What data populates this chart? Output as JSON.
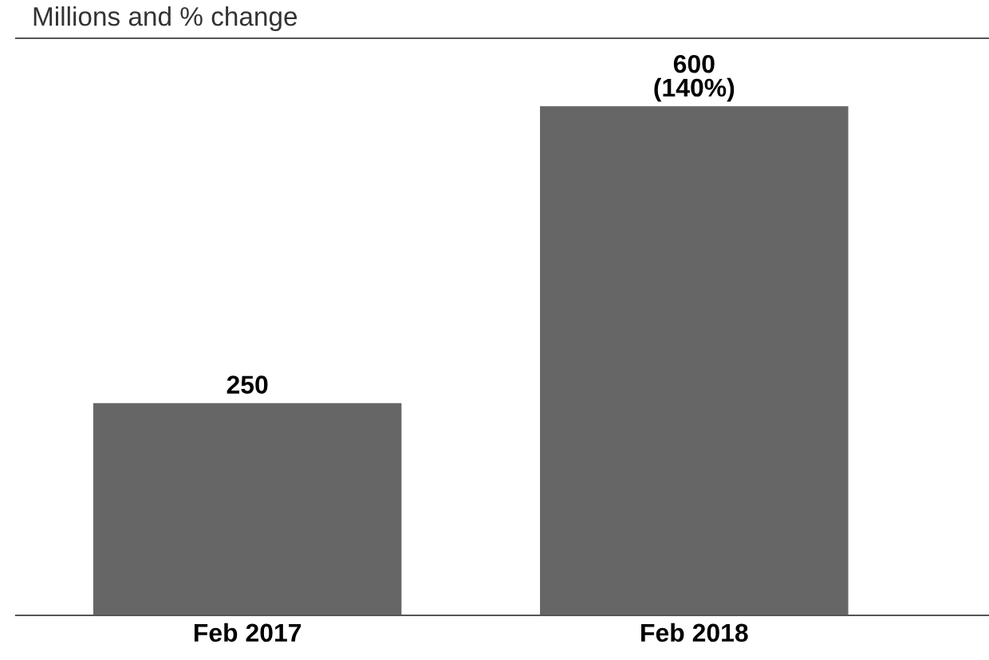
{
  "chart_data": {
    "type": "bar",
    "subtitle": "Millions and % change",
    "categories": [
      "Feb 2017",
      "Feb 2018"
    ],
    "values": [
      250,
      600
    ],
    "color": "#666666",
    "value_labels": [
      "250",
      "600\n(140%)"
    ],
    "ylim": [
      0,
      680
    ],
    "tick_labels": "x",
    "grid": false,
    "legend": false
  }
}
